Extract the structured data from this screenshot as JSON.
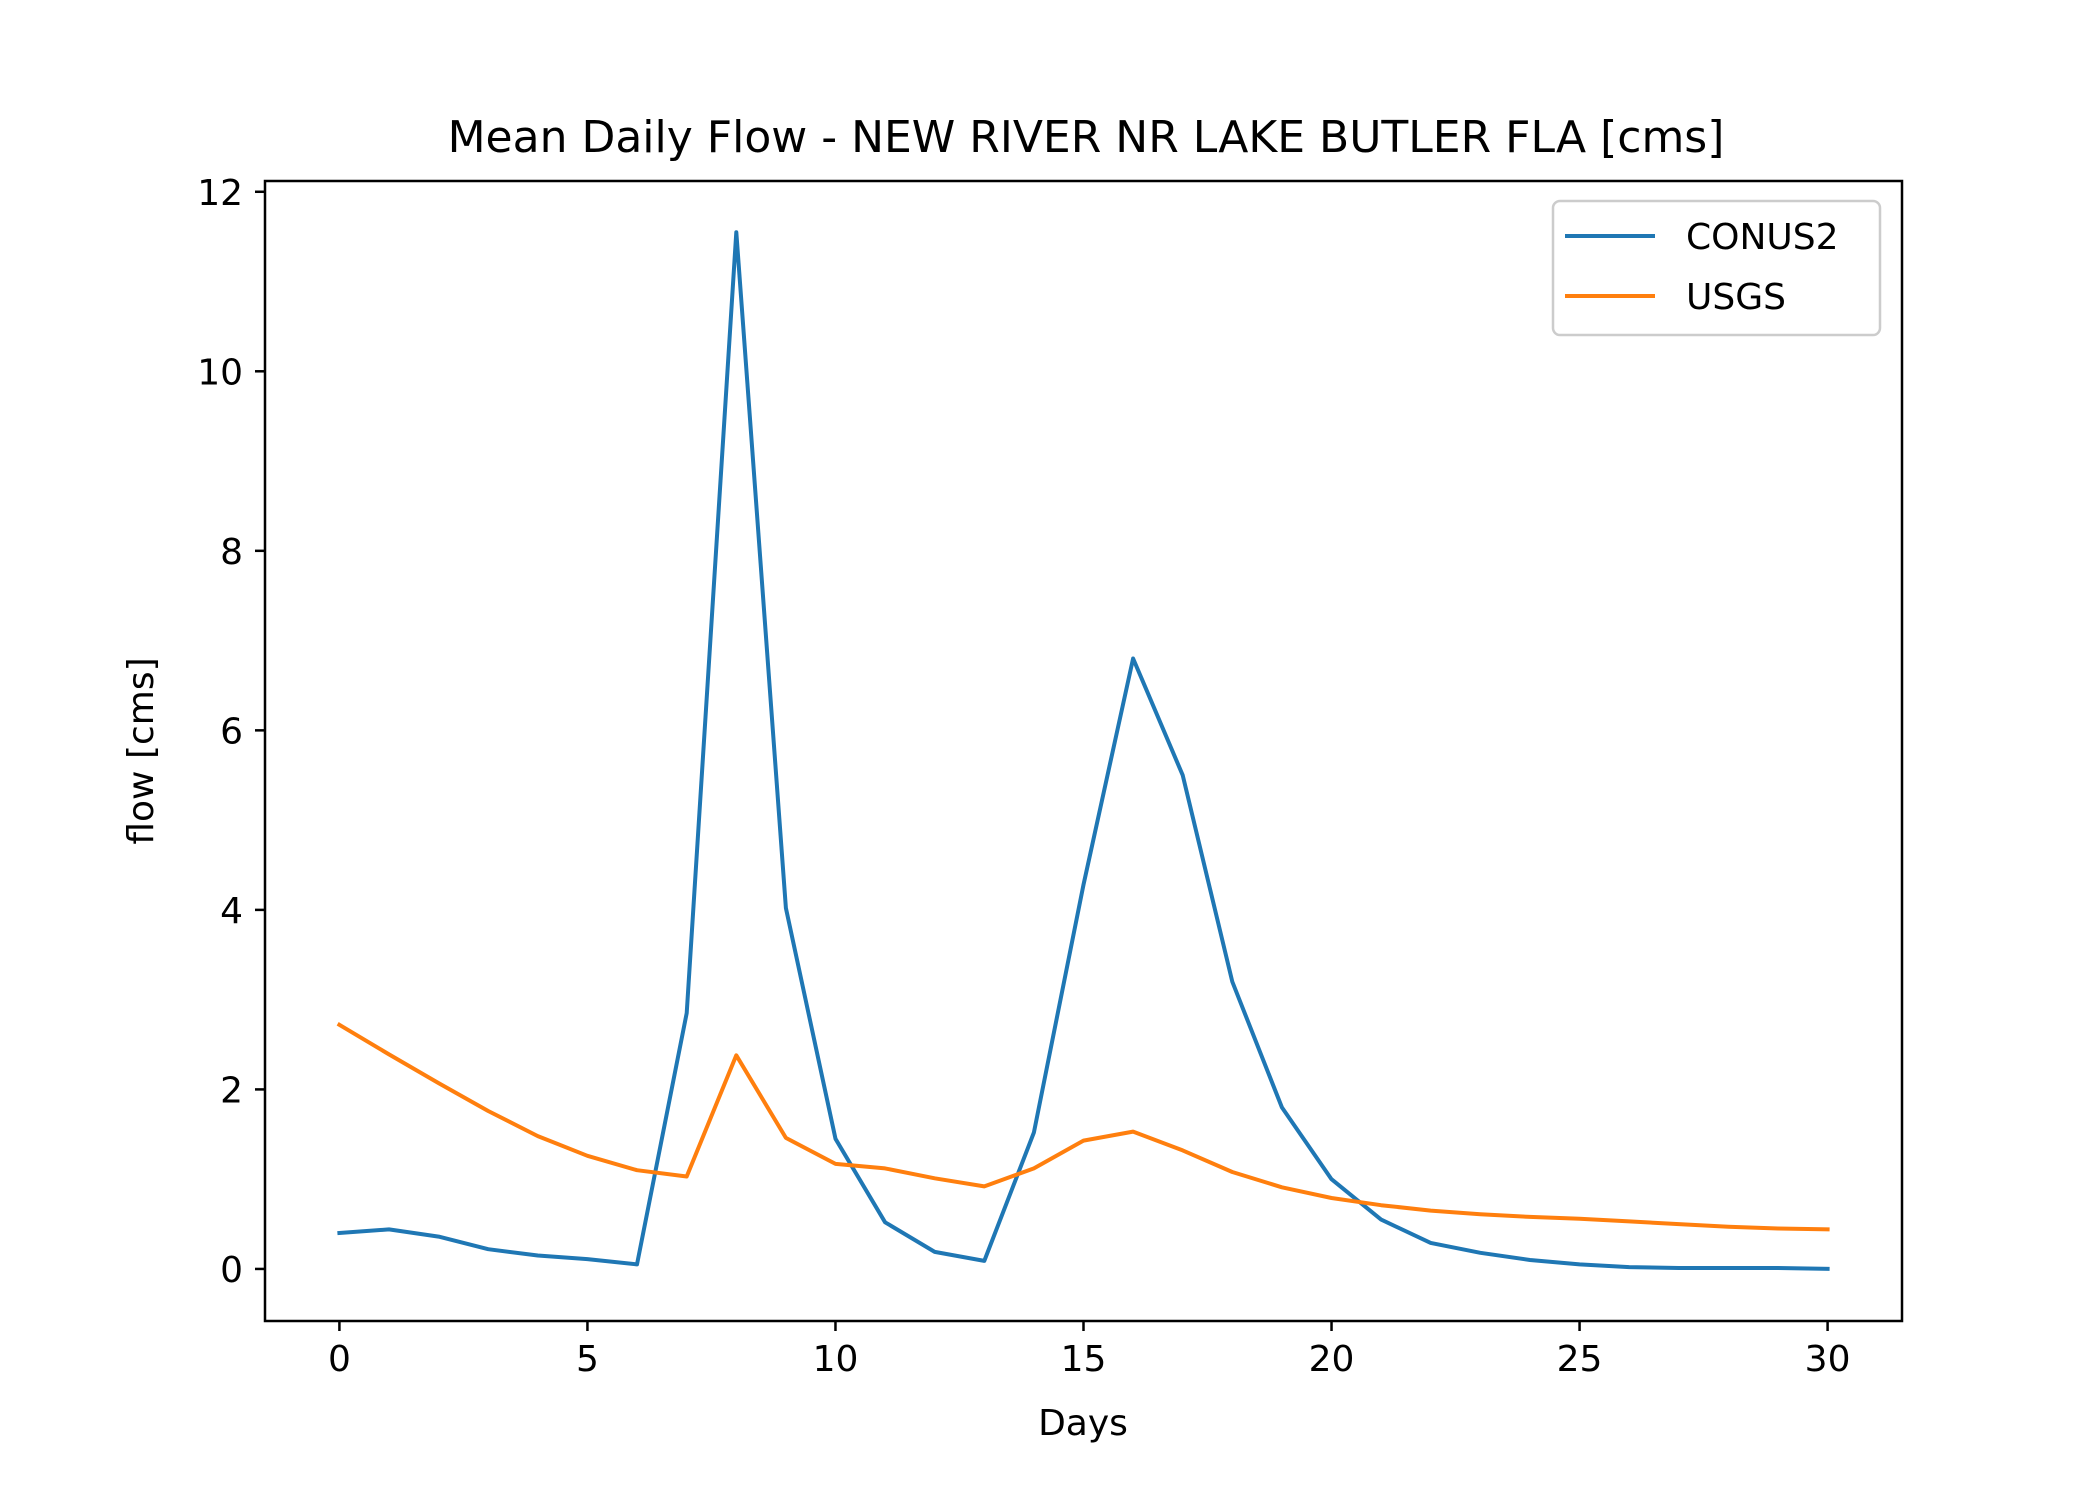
{
  "chart_data": {
    "type": "line",
    "title": "Mean Daily Flow - NEW RIVER NR LAKE BUTLER FLA [cms]",
    "xlabel": "Days",
    "ylabel": "flow [cms]",
    "xlim": [
      -1.5,
      31.5
    ],
    "ylim": [
      -0.58,
      12.12
    ],
    "xticks": [
      0,
      5,
      10,
      15,
      20,
      25,
      30
    ],
    "yticks": [
      0,
      2,
      4,
      6,
      8,
      10,
      12
    ],
    "grid": false,
    "legend": "top-right",
    "x": [
      0,
      1,
      2,
      3,
      4,
      5,
      6,
      7,
      8,
      9,
      10,
      11,
      12,
      13,
      14,
      15,
      16,
      17,
      18,
      19,
      20,
      21,
      22,
      23,
      24,
      25,
      26,
      27,
      28,
      29,
      30
    ],
    "series": [
      {
        "name": "CONUS2",
        "color": "#1f77b4",
        "values": [
          0.4,
          0.44,
          0.36,
          0.22,
          0.15,
          0.11,
          0.05,
          2.85,
          11.55,
          4.02,
          1.45,
          0.52,
          0.19,
          0.09,
          1.52,
          4.28,
          6.8,
          5.5,
          3.2,
          1.8,
          1.0,
          0.55,
          0.29,
          0.18,
          0.1,
          0.05,
          0.02,
          0.01,
          0.01,
          0.01,
          0.0
        ]
      },
      {
        "name": "USGS",
        "color": "#ff7f0e",
        "values": [
          2.72,
          2.39,
          2.07,
          1.76,
          1.48,
          1.26,
          1.1,
          1.03,
          2.38,
          1.46,
          1.17,
          1.12,
          1.01,
          0.92,
          1.12,
          1.43,
          1.53,
          1.32,
          1.08,
          0.91,
          0.79,
          0.71,
          0.65,
          0.61,
          0.58,
          0.56,
          0.53,
          0.5,
          0.47,
          0.45,
          0.44
        ]
      }
    ]
  }
}
